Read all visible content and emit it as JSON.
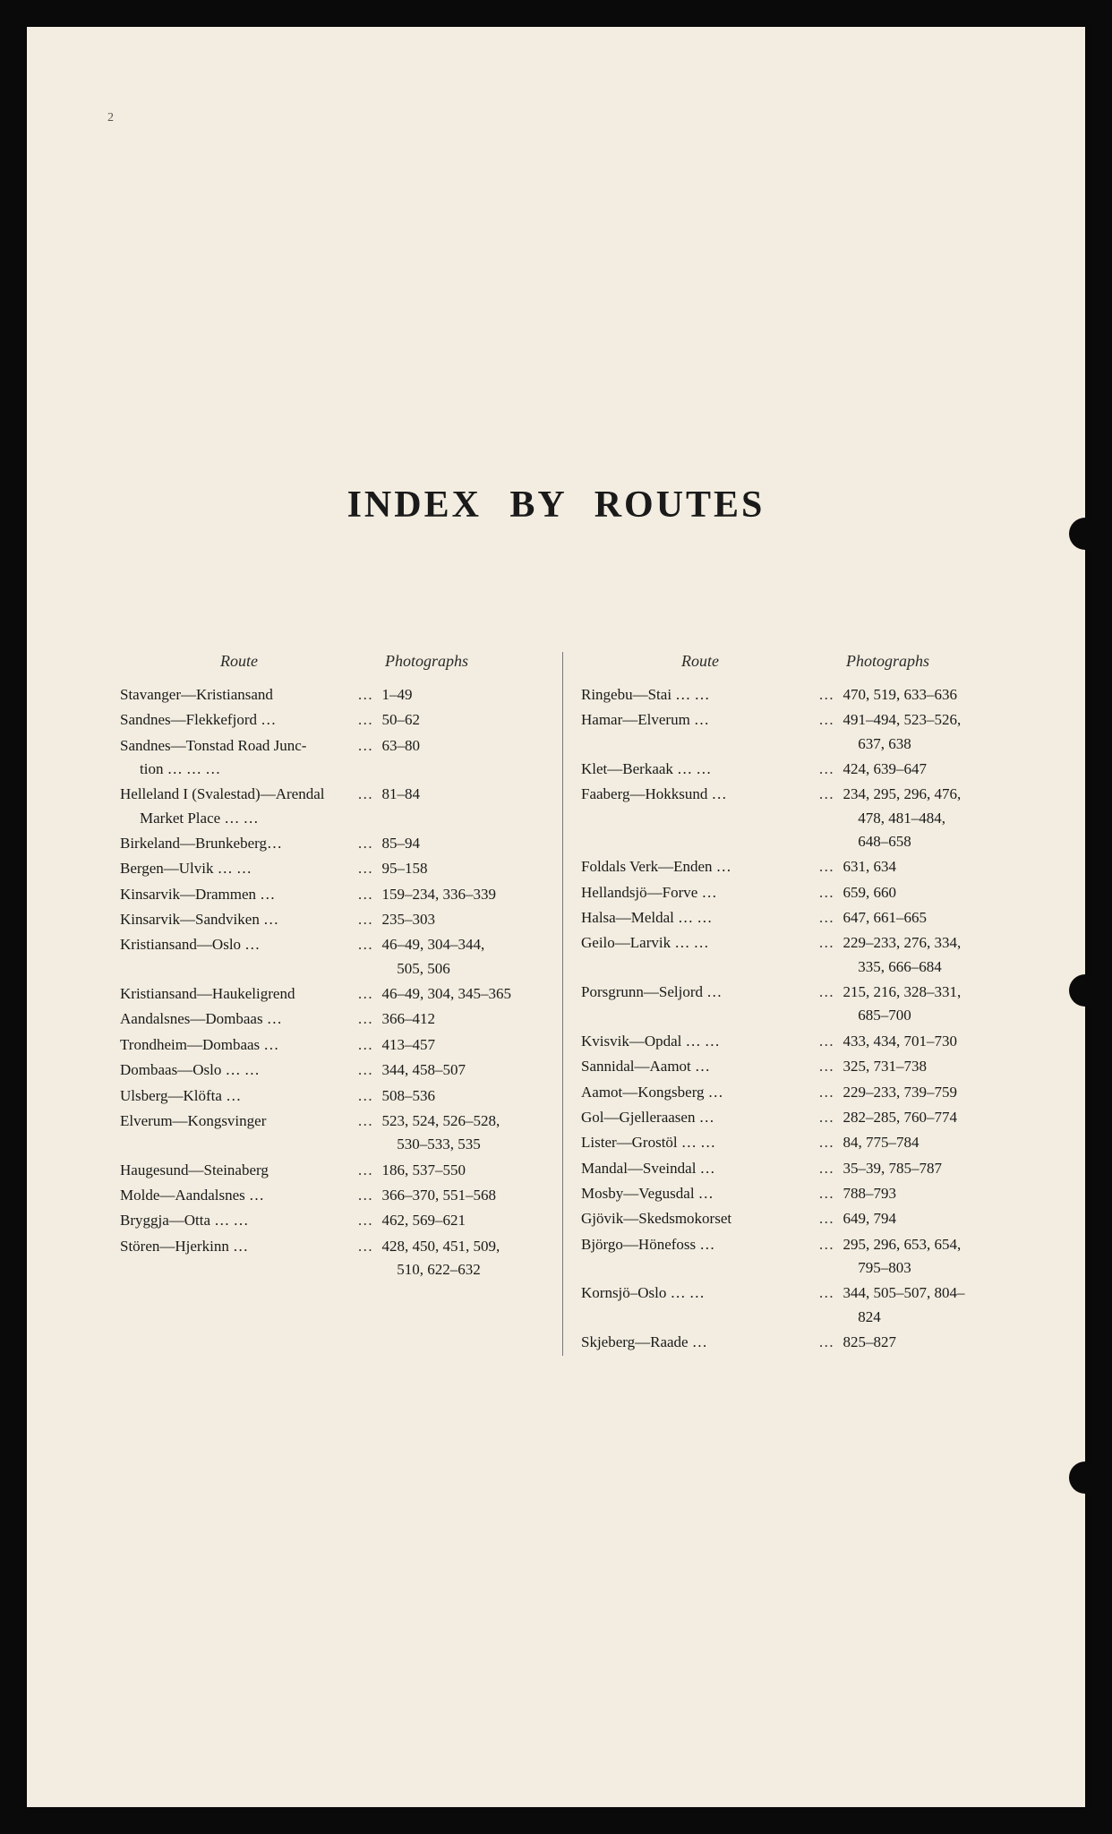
{
  "page_number": "2",
  "title": "INDEX BY ROUTES",
  "headers": {
    "route": "Route",
    "photos": "Photographs"
  },
  "left": [
    {
      "route": "Stavanger—Kristiansand",
      "lead": "…",
      "photos": "1–49"
    },
    {
      "route": "Sandnes—Flekkefjord …",
      "lead": "…",
      "photos": "50–62"
    },
    {
      "route": "Sandnes—Tonstad Road Junc-",
      "cont": "tion   …   …   …",
      "lead": "…",
      "photos": "63–80"
    },
    {
      "route": "Helleland I (Svalestad)—Arendal",
      "cont": "Market Place …   …",
      "lead": "…",
      "photos": "81–84"
    },
    {
      "route": "Birkeland—Brunkeberg…",
      "lead": "…",
      "photos": "85–94"
    },
    {
      "route": "Bergen—Ulvik  …   …",
      "lead": "…",
      "photos": "95–158"
    },
    {
      "route": "Kinsarvik—Drammen  …",
      "lead": "…",
      "photos": "159–234, 336–339"
    },
    {
      "route": "Kinsarvik—Sandviken …",
      "lead": "…",
      "photos": "235–303"
    },
    {
      "route": "Kristiansand—Oslo   …",
      "lead": "…",
      "photos": "46–49, 304–344,",
      "pcont": "505, 506"
    },
    {
      "route": "Kristiansand—Haukeligrend",
      "lead": "…",
      "photos": "46–49, 304, 345–365"
    },
    {
      "route": "Aandalsnes—Dombaas …",
      "lead": "…",
      "photos": "366–412"
    },
    {
      "route": "Trondheim—Dombaas …",
      "lead": "…",
      "photos": "413–457"
    },
    {
      "route": "Dombaas—Oslo …   …",
      "lead": "…",
      "photos": "344, 458–507"
    },
    {
      "route": "Ulsberg—Klöfta   …",
      "lead": "…",
      "photos": "508–536"
    },
    {
      "route": "Elverum—Kongsvinger",
      "lead": "…",
      "photos": "523, 524, 526–528,",
      "pcont": "530–533, 535"
    },
    {
      "route": "Haugesund—Steinaberg",
      "lead": "…",
      "photos": "186, 537–550"
    },
    {
      "route": "Molde—Aandalsnes   …",
      "lead": "…",
      "photos": "366–370, 551–568"
    },
    {
      "route": "Bryggja—Otta …   …",
      "lead": "…",
      "photos": "462, 569–621"
    },
    {
      "route": "Stören—Hjerkinn    …",
      "lead": "…",
      "photos": "428, 450, 451, 509,",
      "pcont": "510, 622–632"
    }
  ],
  "right": [
    {
      "route": "Ringebu—Stai  …   …",
      "lead": "…",
      "photos": "470, 519, 633–636"
    },
    {
      "route": "Hamar—Elverum    …",
      "lead": "…",
      "photos": "491–494, 523–526,",
      "pcont": "637, 638"
    },
    {
      "route": "Klet—Berkaak  …   …",
      "lead": "…",
      "photos": "424, 639–647"
    },
    {
      "route": "Faaberg—Hokksund   …",
      "lead": "…",
      "photos": "234, 295, 296, 476,",
      "pcont": "478, 481–484,",
      "pcont2": "648–658"
    },
    {
      "route": "Foldals Verk—Enden  …",
      "lead": "…",
      "photos": "631, 634"
    },
    {
      "route": "Hellandsjö—Forve   …",
      "lead": "…",
      "photos": "659, 660"
    },
    {
      "route": "Halsa—Meldal  …   …",
      "lead": "…",
      "photos": "647, 661–665"
    },
    {
      "route": "Geilo—Larvik  …   …",
      "lead": "…",
      "photos": "229–233, 276, 334,",
      "pcont": "335, 666–684"
    },
    {
      "route": "Porsgrunn—Seljord   …",
      "lead": "…",
      "photos": "215, 216, 328–331,",
      "pcont": "685–700"
    },
    {
      "route": "Kvisvik—Opdal …   …",
      "lead": "…",
      "photos": "433, 434, 701–730"
    },
    {
      "route": "Sannidal—Aamot    …",
      "lead": "…",
      "photos": "325, 731–738"
    },
    {
      "route": "Aamot—Kongsberg    …",
      "lead": "…",
      "photos": "229–233, 739–759"
    },
    {
      "route": "Gol—Gjelleraasen   …",
      "lead": "…",
      "photos": "282–285, 760–774"
    },
    {
      "route": "Lister—Grostöl …   …",
      "lead": "…",
      "photos": "84, 775–784"
    },
    {
      "route": "Mandal—Sveindal    …",
      "lead": "…",
      "photos": "35–39, 785–787"
    },
    {
      "route": "Mosby—Vegusdal    …",
      "lead": "…",
      "photos": "788–793"
    },
    {
      "route": "Gjövik—Skedsmokorset",
      "lead": "…",
      "photos": "649, 794"
    },
    {
      "route": "Björgo—Hönefoss    …",
      "lead": "…",
      "photos": "295, 296, 653, 654,",
      "pcont": "795–803"
    },
    {
      "route": "Kornsjö–Oslo  …   …",
      "lead": "…",
      "photos": "344, 505–507, 804–",
      "pcont": "824"
    },
    {
      "route": "Skjeberg—Raade    …",
      "lead": "…",
      "photos": "825–827"
    }
  ]
}
